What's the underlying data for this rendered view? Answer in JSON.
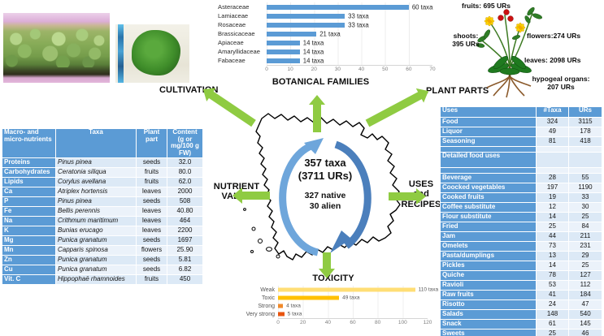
{
  "colors": {
    "table_blue": "#5B9BD5",
    "row_stripe_a": "#DCE9F6",
    "row_stripe_b": "#EBF2FA",
    "bar_blue": "#5B9BD5",
    "arrow_green": "#8FCB42",
    "arc_dark_blue": "#4B7FBC",
    "arc_light_blue": "#6EA6DB",
    "toxicity_weak": "#FFDE75",
    "toxicity_toxic": "#FFC000",
    "toxicity_strong": "#F08A2A",
    "toxicity_very_strong": "#E8540E"
  },
  "labels": {
    "cultivation": "CULTIVATION",
    "botanical_families": "BOTANICAL FAMILIES",
    "plant_parts": "PLANT PARTS",
    "nutrient_line1": "NUTRIENT",
    "nutrient_line2": "VALUE",
    "uses_line1": "USES",
    "uses_line2": "and",
    "uses_line3": "RECIPES",
    "toxicity": "TOXICITY"
  },
  "hub": {
    "line1": "357 taxa",
    "line2": "(3711 URs)",
    "line3": "327 native",
    "line4": "30 alien"
  },
  "plant_parts": {
    "fruits": "fruits: 695 URs",
    "flowers": "flowers:274 URs",
    "shoots_line1": "shoots:",
    "shoots_line2": "395 URs",
    "leaves": "leaves: 2098 URs",
    "hypogeal_line1": "hypogeal organs:",
    "hypogeal_line2": "207 URs"
  },
  "nutrients_table": {
    "headers": [
      "Macro- and micro-nutrients",
      "Taxa",
      "Plant part",
      "Content (g or mg/100 g FW)"
    ],
    "rows": [
      [
        "Proteins",
        "Pinus pinea",
        "seeds",
        "32.0"
      ],
      [
        "Carbohydrates",
        "Ceratonia siliqua",
        "fruits",
        "80.0"
      ],
      [
        "Lipids",
        "Corylus avellana",
        "fruits",
        "62.0"
      ],
      [
        "Ca",
        "Atriplex hortensis",
        "leaves",
        "2000"
      ],
      [
        "P",
        "Pinus pinea",
        "seeds",
        "508"
      ],
      [
        "Fe",
        "Bellis perennis",
        "leaves",
        "40.80"
      ],
      [
        "Na",
        "Crithmum maritimum",
        "leaves",
        "464"
      ],
      [
        "K",
        "Bunias erucago",
        "leaves",
        "2200"
      ],
      [
        "Mg",
        "Punica granatum",
        "seeds",
        "1697"
      ],
      [
        "Mn",
        "Capparis spinosa",
        "flowers",
        "25.90"
      ],
      [
        "Zn",
        "Punica granatum",
        "seeds",
        "5.81"
      ],
      [
        "Cu",
        "Punica granatum",
        "seeds",
        "6.82"
      ],
      [
        "Vit. C",
        "Hippophaë rhamnoides",
        "fruits",
        "450"
      ]
    ]
  },
  "uses_table": {
    "headers": [
      "Uses",
      "#Taxa",
      "URs"
    ],
    "rows_main": [
      [
        "Food",
        "324",
        "3115"
      ],
      [
        "Liquor",
        "49",
        "178"
      ],
      [
        "Seasoning",
        "81",
        "418"
      ]
    ],
    "section_label": "Detailed food uses",
    "rows_detail": [
      [
        "Beverage",
        "28",
        "55"
      ],
      [
        "Coocked vegetables",
        "197",
        "1190"
      ],
      [
        "Cooked fruits",
        "19",
        "33"
      ],
      [
        "Coffee substitute",
        "12",
        "30"
      ],
      [
        "Flour substitute",
        "14",
        "25"
      ],
      [
        "Fried",
        "25",
        "84"
      ],
      [
        "Jam",
        "44",
        "211"
      ],
      [
        "Omelets",
        "73",
        "231"
      ],
      [
        "Pasta/dumplings",
        "13",
        "29"
      ],
      [
        "Pickles",
        "14",
        "25"
      ],
      [
        "Quiche",
        "78",
        "127"
      ],
      [
        "Ravioli",
        "53",
        "112"
      ],
      [
        "Raw fruits",
        "41",
        "184"
      ],
      [
        "Risotto",
        "24",
        "47"
      ],
      [
        "Salads",
        "148",
        "540"
      ],
      [
        "Snack",
        "61",
        "145"
      ],
      [
        "Sweets",
        "25",
        "46"
      ]
    ]
  },
  "chart_data": [
    {
      "id": "botanical_families",
      "type": "bar",
      "orientation": "horizontal",
      "title": "BOTANICAL FAMILIES",
      "categories": [
        "Asteraceae",
        "Lamiaceae",
        "Rosaceae",
        "Brassicaceae",
        "Apiaceae",
        "Amaryllidaceae",
        "Fabaceae"
      ],
      "values": [
        60,
        33,
        33,
        21,
        14,
        14,
        14
      ],
      "value_labels": [
        "60 taxa",
        "33 taxa",
        "33 taxa",
        "21 taxa",
        "14 taxa",
        "14 taxa",
        "14 taxa"
      ],
      "xlim": [
        0,
        70
      ],
      "xticks": [
        0,
        10,
        20,
        30,
        40,
        50,
        60,
        70
      ],
      "bar_color": "#5B9BD5",
      "grid": true,
      "legend": "none"
    },
    {
      "id": "toxicity",
      "type": "bar",
      "orientation": "horizontal",
      "title": "TOXICITY",
      "categories": [
        "Weak",
        "Toxic",
        "Strong",
        "Very strong"
      ],
      "values": [
        110,
        49,
        4,
        5
      ],
      "value_labels": [
        "110 taxa",
        "49 taxa",
        "4 taxa",
        "5 taxa"
      ],
      "xlim": [
        0,
        120
      ],
      "xticks": [
        0,
        20,
        40,
        60,
        80,
        100,
        120
      ],
      "bar_colors": [
        "#FFDE75",
        "#FFC000",
        "#F08A2A",
        "#E8540E"
      ],
      "grid": true,
      "legend": "none"
    }
  ]
}
